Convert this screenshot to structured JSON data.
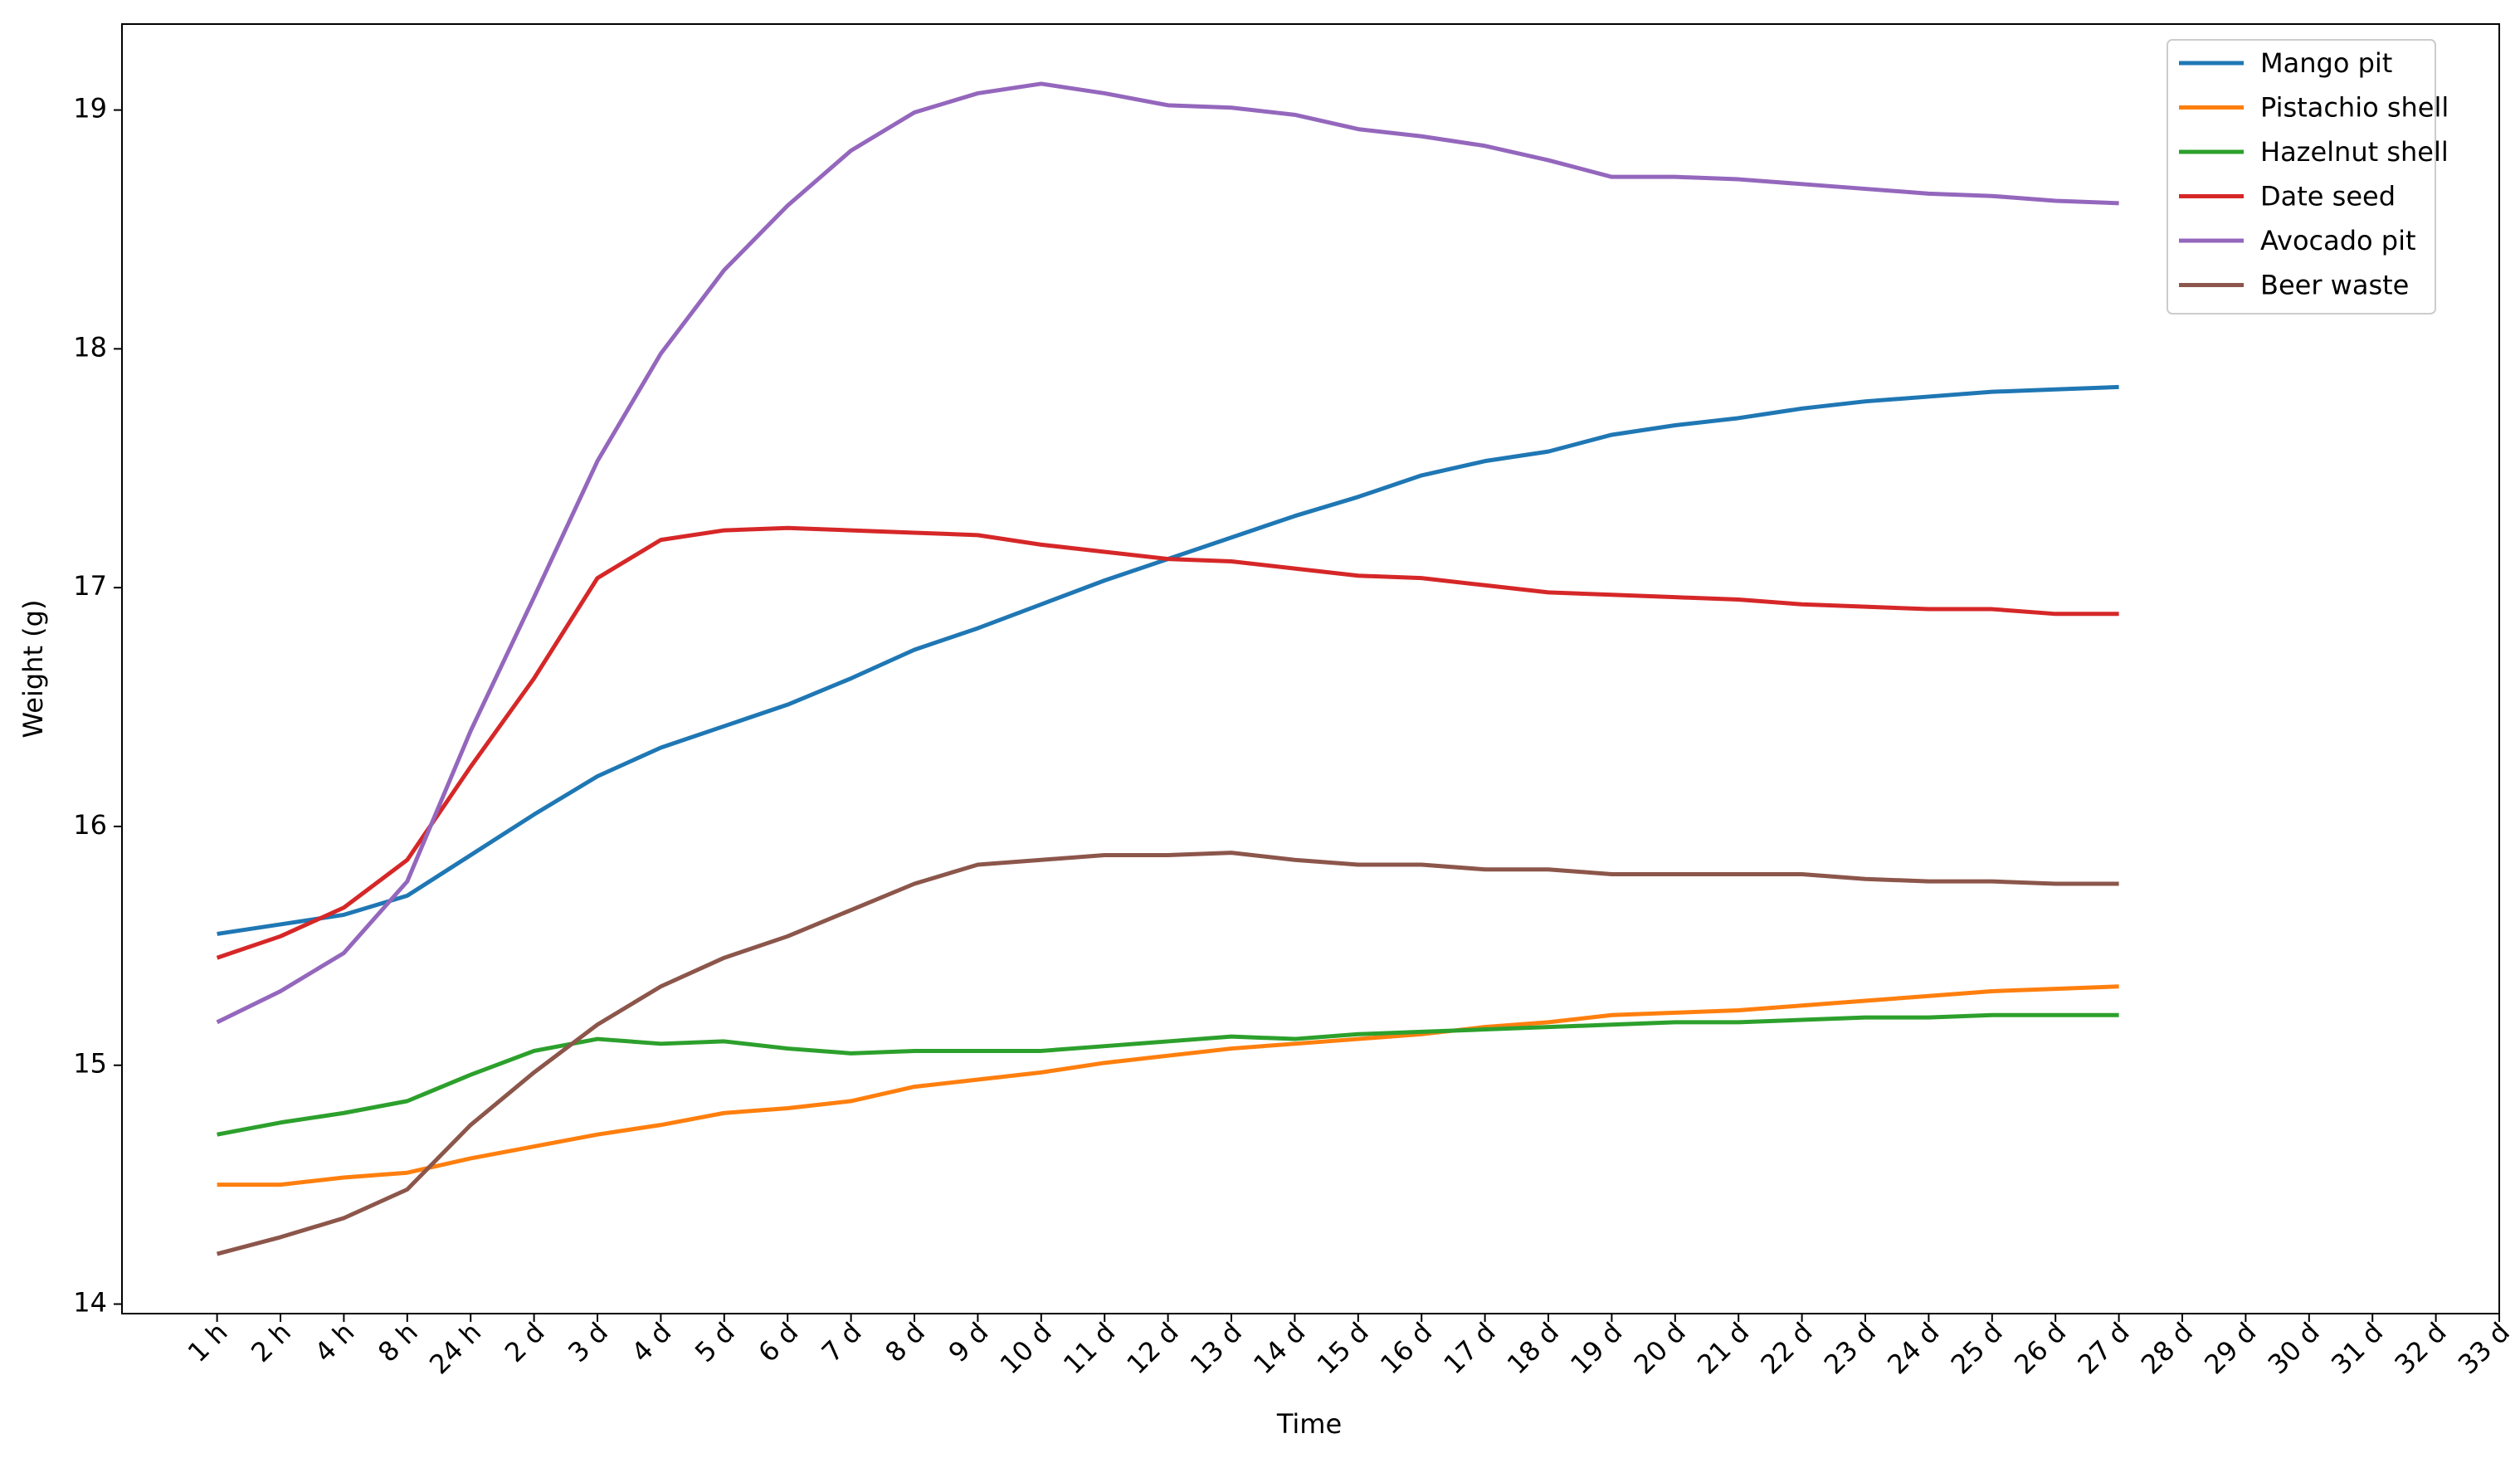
{
  "chart_data": {
    "type": "line",
    "x_label": "Time",
    "y_label": "Weight (g)",
    "categories": [
      "1 h",
      "2 h",
      "4 h",
      "8 h",
      "24 h",
      "2 d",
      "3 d",
      "4 d",
      "5 d",
      "6 d",
      "7 d",
      "8 d",
      "9 d",
      "10 d",
      "11 d",
      "12 d",
      "13 d",
      "14 d",
      "15 d",
      "16 d",
      "17 d",
      "18 d",
      "19 d",
      "20 d",
      "21 d",
      "22 d",
      "23 d",
      "24 d",
      "25 d",
      "26 d",
      "27 d",
      "28 d",
      "29 d",
      "30 d",
      "31 d",
      "32 d",
      "33 d"
    ],
    "series": [
      {
        "name": "Mango pit",
        "color": "#1f77b4",
        "values": [
          15.55,
          15.59,
          15.63,
          15.71,
          15.88,
          16.05,
          16.21,
          16.33,
          16.42,
          16.51,
          16.62,
          16.74,
          16.83,
          16.93,
          17.03,
          17.12,
          17.21,
          17.3,
          17.38,
          17.47,
          17.53,
          17.57,
          17.64,
          17.68,
          17.71,
          17.75,
          17.78,
          17.8,
          17.82,
          17.83,
          17.84,
          null,
          null,
          null,
          null,
          null,
          null
        ]
      },
      {
        "name": "Pistachio shell",
        "color": "#ff7f0e",
        "values": [
          14.5,
          14.5,
          14.53,
          14.55,
          14.61,
          14.66,
          14.71,
          14.75,
          14.8,
          14.82,
          14.85,
          14.91,
          14.94,
          14.97,
          15.01,
          15.04,
          15.07,
          15.09,
          15.11,
          15.13,
          15.16,
          15.18,
          15.21,
          15.22,
          15.23,
          15.25,
          15.27,
          15.29,
          15.31,
          15.32,
          15.33,
          null,
          null,
          null,
          null,
          null,
          null
        ]
      },
      {
        "name": "Hazelnut shell",
        "color": "#2ca02c",
        "values": [
          14.71,
          14.76,
          14.8,
          14.85,
          14.96,
          15.06,
          15.11,
          15.09,
          15.1,
          15.07,
          15.05,
          15.06,
          15.06,
          15.06,
          15.08,
          15.1,
          15.12,
          15.11,
          15.13,
          15.14,
          15.15,
          15.16,
          15.17,
          15.18,
          15.18,
          15.19,
          15.2,
          15.2,
          15.21,
          15.21,
          15.21,
          null,
          null,
          null,
          null,
          null,
          null
        ]
      },
      {
        "name": "Date seed",
        "color": "#d62728",
        "values": [
          15.45,
          15.54,
          15.66,
          15.86,
          16.25,
          16.62,
          17.04,
          17.2,
          17.24,
          17.25,
          17.24,
          17.23,
          17.22,
          17.18,
          17.15,
          17.12,
          17.11,
          17.08,
          17.05,
          17.04,
          17.01,
          16.98,
          16.97,
          16.96,
          16.95,
          16.93,
          16.92,
          16.91,
          16.91,
          16.89,
          16.89,
          null,
          null,
          null,
          null,
          null,
          null
        ]
      },
      {
        "name": "Avocado pit",
        "color": "#9467bd",
        "values": [
          15.18,
          15.31,
          15.47,
          15.77,
          16.4,
          16.96,
          17.53,
          17.98,
          18.33,
          18.6,
          18.83,
          18.99,
          19.07,
          19.11,
          19.07,
          19.02,
          19.01,
          18.98,
          18.92,
          18.89,
          18.85,
          18.79,
          18.72,
          18.72,
          18.71,
          18.69,
          18.67,
          18.65,
          18.64,
          18.62,
          18.61,
          null,
          null,
          null,
          null,
          null,
          null
        ]
      },
      {
        "name": "Beer waste",
        "color": "#8c564b",
        "values": [
          14.21,
          14.28,
          14.36,
          14.48,
          14.75,
          14.97,
          15.17,
          15.33,
          15.45,
          15.54,
          15.65,
          15.76,
          15.84,
          15.86,
          15.88,
          15.88,
          15.89,
          15.86,
          15.84,
          15.84,
          15.82,
          15.82,
          15.8,
          15.8,
          15.8,
          15.8,
          15.78,
          15.77,
          15.77,
          15.76,
          15.76,
          null,
          null,
          null,
          null,
          null,
          null
        ]
      }
    ],
    "ylim": [
      13.96,
      19.36
    ],
    "yticks": [
      14,
      15,
      16,
      17,
      18,
      19
    ],
    "grid": false,
    "legend": "upper right"
  }
}
